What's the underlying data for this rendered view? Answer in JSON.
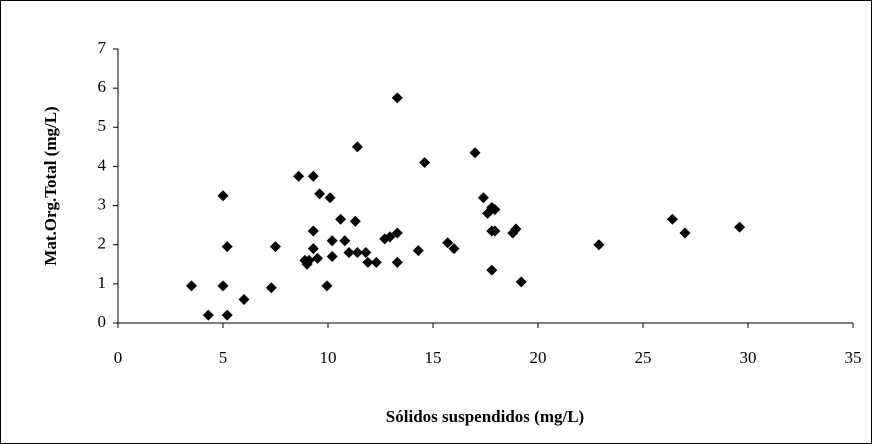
{
  "chart_data": {
    "type": "scatter",
    "x_label": "Sólidos suspendidos (mg/L)",
    "y_label": "Mat.Org.Total (mg/L)",
    "xlim": [
      0,
      35
    ],
    "xticks": [
      0,
      5,
      10,
      15,
      20,
      25,
      30,
      35
    ],
    "ylim": [
      0,
      7
    ],
    "yticks": [
      0,
      1,
      2,
      3,
      4,
      5,
      6,
      7
    ],
    "color": "#000000",
    "series": [
      {
        "x": [
          3.5,
          4.3,
          5.0,
          5.0,
          5.2,
          5.2,
          6.0,
          7.3,
          7.5,
          8.6,
          8.9,
          9.0,
          9.1,
          9.3,
          9.3,
          9.3,
          9.5,
          9.6,
          9.95,
          10.1,
          10.2,
          10.2,
          10.6,
          10.8,
          11.0,
          11.3,
          11.4,
          11.4,
          11.8,
          11.9,
          12.3,
          12.7,
          12.95,
          13.3,
          13.3,
          13.3,
          14.3,
          14.6,
          15.7,
          16.0,
          17.0,
          17.4,
          17.6,
          17.8,
          17.8,
          17.8,
          17.95,
          17.95,
          18.8,
          18.95,
          19.2,
          22.9,
          26.4,
          27.0,
          29.6
        ],
        "values": [
          0.95,
          0.2,
          3.25,
          0.95,
          1.95,
          0.2,
          0.6,
          0.9,
          1.95,
          3.75,
          1.6,
          1.5,
          1.6,
          1.9,
          3.75,
          2.35,
          1.65,
          3.3,
          0.95,
          3.2,
          2.1,
          1.7,
          2.65,
          2.1,
          1.8,
          2.6,
          4.5,
          1.8,
          1.8,
          1.55,
          1.55,
          2.15,
          2.2,
          2.3,
          1.55,
          5.75,
          1.85,
          4.1,
          2.05,
          1.9,
          4.35,
          3.2,
          2.8,
          2.95,
          2.35,
          1.35,
          2.9,
          2.35,
          2.3,
          2.4,
          1.05,
          2.0,
          2.65,
          2.3,
          2.45
        ]
      }
    ]
  }
}
